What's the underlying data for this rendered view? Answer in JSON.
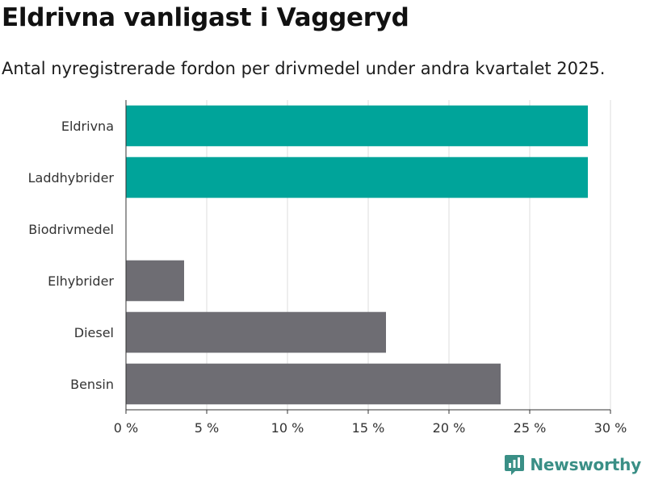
{
  "title": "Eldrivna vanligast i Vaggeryd",
  "subtitle": "Antal nyregistrerade fordon per drivmedel under andra kvartalet 2025.",
  "brand": {
    "name": "Newsworthy",
    "icon": "newsworthy-logo-icon"
  },
  "colors": {
    "highlight": "#00a49a",
    "default": "#6e6d73",
    "grid": "#dddddd",
    "axis": "#333333"
  },
  "chart_data": {
    "type": "bar",
    "orientation": "horizontal",
    "categories": [
      "Eldrivna",
      "Laddhybrider",
      "Biodrivmedel",
      "Elhybrider",
      "Diesel",
      "Bensin"
    ],
    "values": [
      28.6,
      28.6,
      0,
      3.6,
      16.1,
      23.2
    ],
    "highlighted": [
      true,
      true,
      false,
      false,
      false,
      false
    ],
    "xlim": [
      0,
      30
    ],
    "xticks": [
      0,
      5,
      10,
      15,
      20,
      25,
      30
    ],
    "xtick_labels": [
      "0 %",
      "5 %",
      "10 %",
      "15 %",
      "20 %",
      "25 %",
      "30 %"
    ],
    "unit": "%",
    "grid": true,
    "legend": "none"
  }
}
